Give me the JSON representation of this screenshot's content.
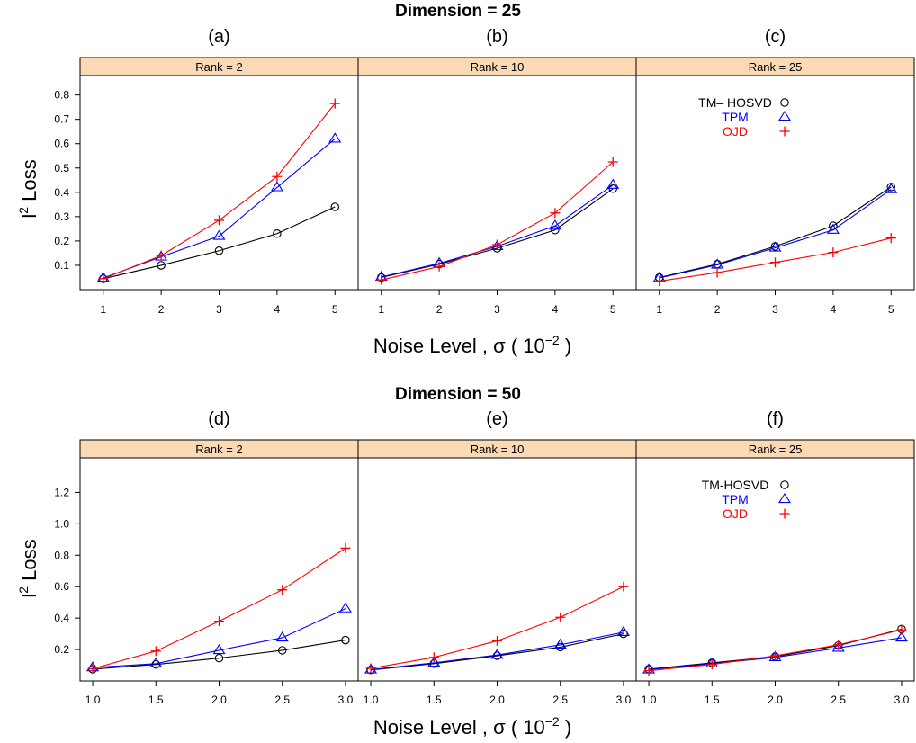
{
  "figure": {
    "x_axis_label_main": "Noise Level , σ  ( 10",
    "x_axis_label_exp": "−2",
    "x_axis_label_close": " )",
    "y_axis_label_main": "l",
    "y_axis_label_exp": "2",
    "y_axis_label_rest": " Loss",
    "colors": {
      "strip": "#fbd9b5",
      "black": "#000000",
      "blue": "#0000ff",
      "red": "#ff0000"
    }
  },
  "chart_data": [
    {
      "type": "line",
      "group_title": "Dimension = 25",
      "xlim": [
        0.6,
        5.4
      ],
      "ylim": [
        0.0,
        0.88
      ],
      "x_ticks": [
        "1",
        "2",
        "3",
        "4",
        "5"
      ],
      "y_ticks": [
        "0.1",
        "0.2",
        "0.3",
        "0.4",
        "0.5",
        "0.6",
        "0.7",
        "0.8"
      ],
      "panels": [
        {
          "letter": "(a)",
          "strip": "Rank = 2",
          "legend": null,
          "x": [
            1,
            2,
            3,
            4,
            5
          ],
          "series": [
            {
              "name": "TM– HOSVD",
              "color": "#000000",
              "marker": "circle",
              "values": [
                0.045,
                0.1,
                0.16,
                0.23,
                0.34
              ]
            },
            {
              "name": "TPM",
              "color": "#0000ff",
              "marker": "triangle",
              "values": [
                0.048,
                0.135,
                0.22,
                0.42,
                0.62
              ]
            },
            {
              "name": "OJD",
              "color": "#ff0000",
              "marker": "plus",
              "values": [
                0.045,
                0.14,
                0.285,
                0.465,
                0.765
              ]
            }
          ]
        },
        {
          "letter": "(b)",
          "strip": "Rank = 10",
          "legend": null,
          "x": [
            1,
            2,
            3,
            4,
            5
          ],
          "series": [
            {
              "name": "TM– HOSVD",
              "color": "#000000",
              "marker": "circle",
              "values": [
                0.05,
                0.105,
                0.17,
                0.245,
                0.415
              ]
            },
            {
              "name": "TPM",
              "color": "#0000ff",
              "marker": "triangle",
              "values": [
                0.052,
                0.108,
                0.178,
                0.262,
                0.43
              ]
            },
            {
              "name": "OJD",
              "color": "#ff0000",
              "marker": "plus",
              "values": [
                0.04,
                0.095,
                0.185,
                0.315,
                0.525
              ]
            }
          ]
        },
        {
          "letter": "(c)",
          "strip": "Rank = 25",
          "legend": {
            "labels": [
              "TM– HOSVD",
              "TPM",
              "OJD"
            ]
          },
          "x": [
            1,
            2,
            3,
            4,
            5
          ],
          "series": [
            {
              "name": "TM– HOSVD",
              "color": "#000000",
              "marker": "circle",
              "values": [
                0.05,
                0.105,
                0.178,
                0.262,
                0.422
              ]
            },
            {
              "name": "TPM",
              "color": "#0000ff",
              "marker": "triangle",
              "values": [
                0.048,
                0.102,
                0.172,
                0.245,
                0.412
              ]
            },
            {
              "name": "OJD",
              "color": "#ff0000",
              "marker": "plus",
              "values": [
                0.035,
                0.07,
                0.112,
                0.153,
                0.212
              ]
            }
          ]
        }
      ]
    },
    {
      "type": "line",
      "group_title": "Dimension = 50",
      "xlim": [
        0.9,
        3.1
      ],
      "ylim": [
        0.0,
        1.42
      ],
      "x_ticks": [
        "1.0",
        "1.5",
        "2.0",
        "2.5",
        "3.0"
      ],
      "y_ticks": [
        "0.2",
        "0.4",
        "0.6",
        "0.8",
        "1.0",
        "1.2"
      ],
      "panels": [
        {
          "letter": "(d)",
          "strip": "Rank = 2",
          "legend": null,
          "x": [
            1.0,
            1.5,
            2.0,
            2.5,
            3.0
          ],
          "series": [
            {
              "name": "TM-HOSVD",
              "color": "#000000",
              "marker": "circle",
              "values": [
                0.075,
                0.105,
                0.145,
                0.195,
                0.26
              ]
            },
            {
              "name": "TPM",
              "color": "#0000ff",
              "marker": "triangle",
              "values": [
                0.085,
                0.11,
                0.195,
                0.275,
                0.46
              ]
            },
            {
              "name": "OJD",
              "color": "#ff0000",
              "marker": "plus",
              "values": [
                0.078,
                0.19,
                0.38,
                0.58,
                0.845
              ]
            }
          ]
        },
        {
          "letter": "(e)",
          "strip": "Rank = 10",
          "legend": null,
          "x": [
            1.0,
            1.5,
            2.0,
            2.5,
            3.0
          ],
          "series": [
            {
              "name": "TM-HOSVD",
              "color": "#000000",
              "marker": "circle",
              "values": [
                0.07,
                0.11,
                0.16,
                0.215,
                0.3
              ]
            },
            {
              "name": "TPM",
              "color": "#0000ff",
              "marker": "triangle",
              "values": [
                0.072,
                0.115,
                0.165,
                0.23,
                0.31
              ]
            },
            {
              "name": "OJD",
              "color": "#ff0000",
              "marker": "plus",
              "values": [
                0.08,
                0.15,
                0.255,
                0.405,
                0.6
              ]
            }
          ]
        },
        {
          "letter": "(f)",
          "strip": "Rank = 25",
          "legend": {
            "labels": [
              "TM-HOSVD",
              "TPM",
              "OJD"
            ]
          },
          "x": [
            1.0,
            1.5,
            2.0,
            2.5,
            3.0
          ],
          "series": [
            {
              "name": "TM-HOSVD",
              "color": "#000000",
              "marker": "circle",
              "values": [
                0.075,
                0.115,
                0.155,
                0.225,
                0.33
              ]
            },
            {
              "name": "TPM",
              "color": "#0000ff",
              "marker": "triangle",
              "values": [
                0.072,
                0.11,
                0.15,
                0.21,
                0.275
              ]
            },
            {
              "name": "OJD",
              "color": "#ff0000",
              "marker": "plus",
              "values": [
                0.065,
                0.105,
                0.16,
                0.23,
                0.325
              ]
            }
          ]
        }
      ]
    }
  ]
}
